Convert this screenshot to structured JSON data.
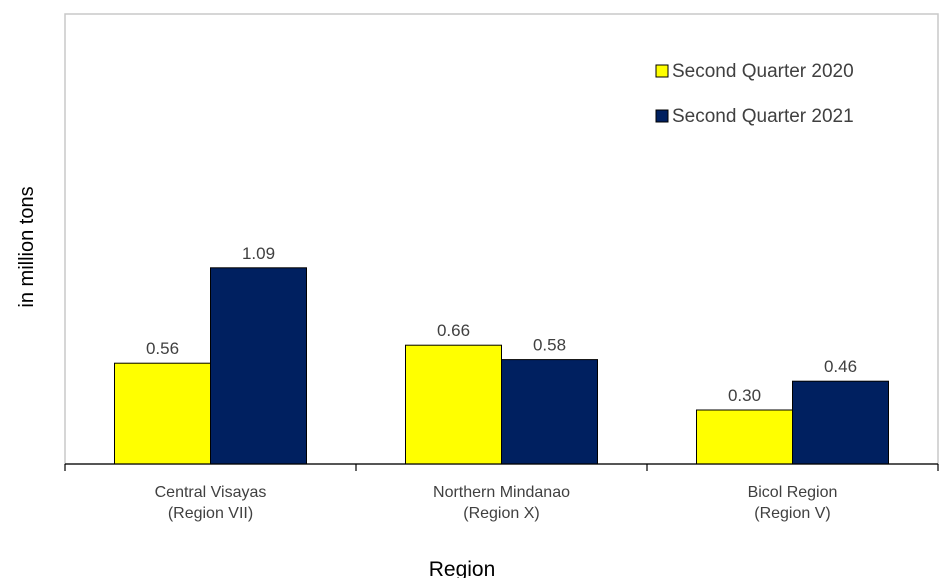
{
  "chart_data": {
    "type": "bar",
    "title": "",
    "xlabel": "Region",
    "ylabel": "in million tons",
    "categories": [
      [
        "Central Visayas",
        "(Region VII)"
      ],
      [
        "Northern Mindanao",
        "(Region X)"
      ],
      [
        "Bicol Region",
        "(Region V)"
      ]
    ],
    "series": [
      {
        "name": "Second Quarter 2020",
        "values": [
          0.56,
          0.66,
          0.3
        ],
        "labels": [
          "0.56",
          "0.66",
          "0.30"
        ],
        "color": "#FFFF00"
      },
      {
        "name": "Second Quarter 2021",
        "values": [
          1.09,
          0.58,
          0.46
        ],
        "labels": [
          "1.09",
          "0.58",
          "0.46"
        ],
        "color": "#002060"
      }
    ],
    "ylim": [
      0,
      2.5
    ],
    "grid": false,
    "legend": "top-right"
  }
}
